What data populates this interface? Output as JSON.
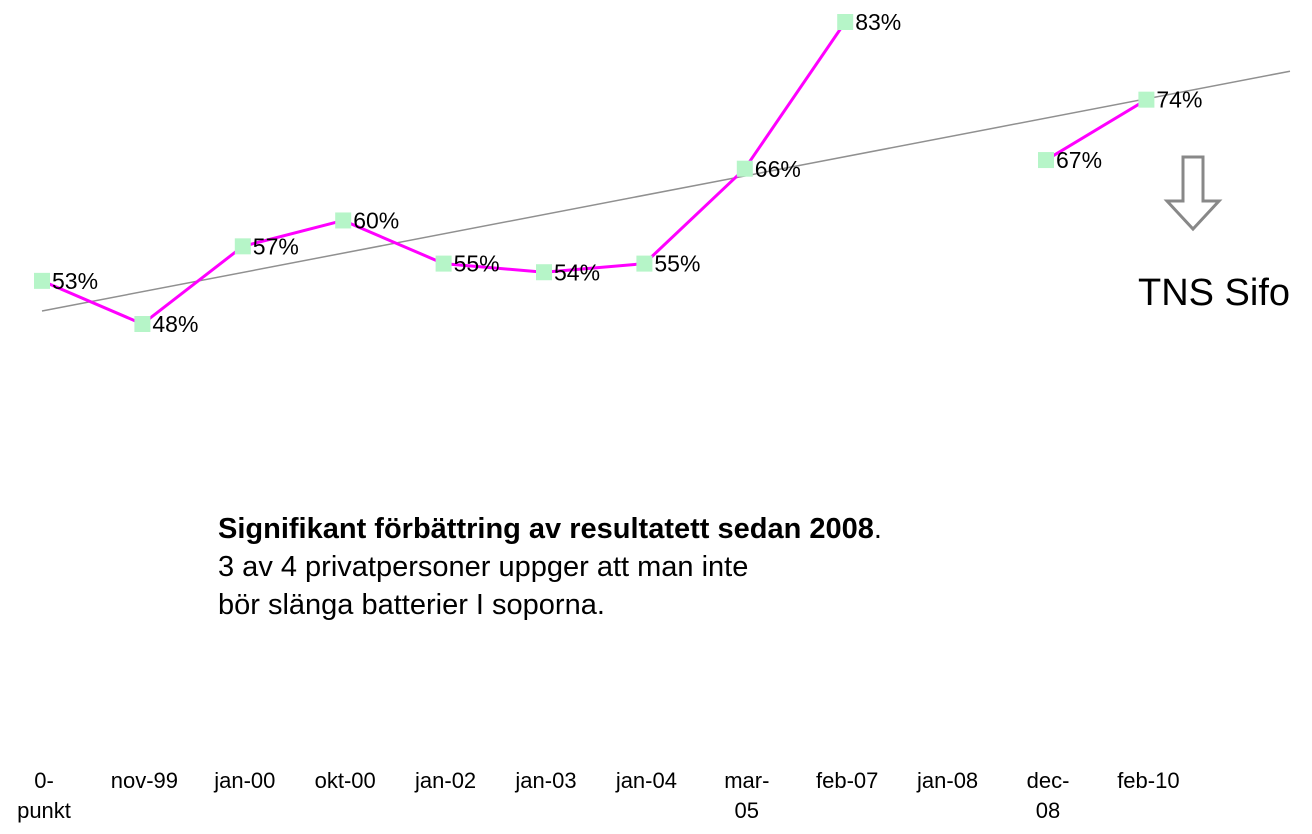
{
  "chart_data": {
    "type": "line",
    "categories": [
      "0-punkt",
      "nov-99",
      "jan-00",
      "okt-00",
      "jan-02",
      "jan-03",
      "jan-04",
      "mar-05",
      "feb-07",
      "jan-08",
      "dec-08",
      "feb-10"
    ],
    "series": [
      {
        "color": "#ff00ff",
        "values": [
          53,
          48,
          57,
          60,
          55,
          54,
          55,
          66,
          83,
          null,
          67,
          74
        ],
        "value_labels": [
          "53%",
          "48%",
          "57%",
          "60%",
          "55%",
          "54%",
          "55%",
          "66%",
          "83%",
          null,
          "67%",
          "74%"
        ]
      }
    ],
    "marker_color": "#b6f5c8",
    "trendline": true,
    "annotation_bold": "Signifikant förbättring av resultatett sedan 2008",
    "annotation_end": ".",
    "annotation_text": "3 av 4 privatpersoner uppger att man inte bör slänga batterier I soporna.",
    "source": "TNS Sifo"
  }
}
